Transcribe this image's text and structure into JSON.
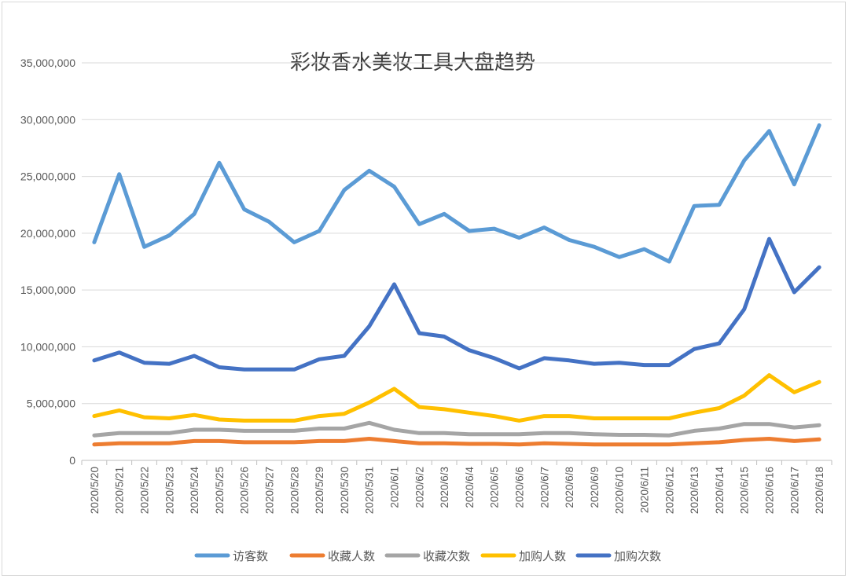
{
  "chart_data": {
    "type": "line",
    "title": "彩妆香水美妆工具大盘趋势",
    "xlabel": "",
    "ylabel": "",
    "ylim": [
      0,
      35000000
    ],
    "yticks": [
      0,
      5000000,
      10000000,
      15000000,
      20000000,
      25000000,
      30000000,
      35000000
    ],
    "ytick_labels": [
      "0",
      "5,000,000",
      "10,000,000",
      "15,000,000",
      "20,000,000",
      "25,000,000",
      "30,000,000",
      "35,000,000"
    ],
    "grid": true,
    "legend_position": "bottom",
    "categories": [
      "2020/5/20",
      "2020/5/21",
      "2020/5/22",
      "2020/5/23",
      "2020/5/24",
      "2020/5/25",
      "2020/5/26",
      "2020/5/27",
      "2020/5/28",
      "2020/5/29",
      "2020/5/30",
      "2020/5/31",
      "2020/6/1",
      "2020/6/2",
      "2020/6/3",
      "2020/6/4",
      "2020/6/5",
      "2020/6/6",
      "2020/6/7",
      "2020/6/8",
      "2020/6/9",
      "2020/6/10",
      "2020/6/11",
      "2020/6/12",
      "2020/6/13",
      "2020/6/14",
      "2020/6/15",
      "2020/6/16",
      "2020/6/17",
      "2020/6/18"
    ],
    "series": [
      {
        "name": "访客数",
        "color": "#5b9bd5",
        "values": [
          19200000,
          25200000,
          18800000,
          19800000,
          21700000,
          26200000,
          22100000,
          21000000,
          19200000,
          20200000,
          23800000,
          25500000,
          24100000,
          20800000,
          21700000,
          20200000,
          20400000,
          19600000,
          20500000,
          19400000,
          18800000,
          17900000,
          18600000,
          17500000,
          22400000,
          22500000,
          26400000,
          29000000,
          24300000,
          29500000
        ]
      },
      {
        "name": "收藏人数",
        "color": "#ed7d31",
        "values": [
          1400000,
          1500000,
          1500000,
          1500000,
          1700000,
          1700000,
          1600000,
          1600000,
          1600000,
          1700000,
          1700000,
          1900000,
          1700000,
          1500000,
          1500000,
          1450000,
          1450000,
          1400000,
          1500000,
          1450000,
          1400000,
          1400000,
          1400000,
          1400000,
          1500000,
          1600000,
          1800000,
          1900000,
          1700000,
          1850000
        ]
      },
      {
        "name": "收藏次数",
        "color": "#a5a5a5",
        "values": [
          2200000,
          2400000,
          2400000,
          2400000,
          2700000,
          2700000,
          2600000,
          2600000,
          2600000,
          2800000,
          2800000,
          3300000,
          2700000,
          2400000,
          2400000,
          2300000,
          2300000,
          2300000,
          2400000,
          2400000,
          2300000,
          2250000,
          2250000,
          2200000,
          2600000,
          2800000,
          3200000,
          3200000,
          2900000,
          3100000
        ]
      },
      {
        "name": "加购人数",
        "color": "#ffc000",
        "values": [
          3900000,
          4400000,
          3800000,
          3700000,
          4000000,
          3600000,
          3500000,
          3500000,
          3500000,
          3900000,
          4100000,
          5100000,
          6300000,
          4700000,
          4500000,
          4200000,
          3900000,
          3500000,
          3900000,
          3900000,
          3700000,
          3700000,
          3700000,
          3700000,
          4200000,
          4600000,
          5700000,
          7500000,
          6000000,
          6900000
        ]
      },
      {
        "name": "加购次数",
        "color": "#4472c4",
        "values": [
          8800000,
          9500000,
          8600000,
          8500000,
          9200000,
          8200000,
          8000000,
          8000000,
          8000000,
          8900000,
          9200000,
          11800000,
          15500000,
          11200000,
          10900000,
          9700000,
          9000000,
          8100000,
          9000000,
          8800000,
          8500000,
          8600000,
          8400000,
          8400000,
          9800000,
          10300000,
          13300000,
          19500000,
          14800000,
          17000000
        ]
      }
    ]
  }
}
